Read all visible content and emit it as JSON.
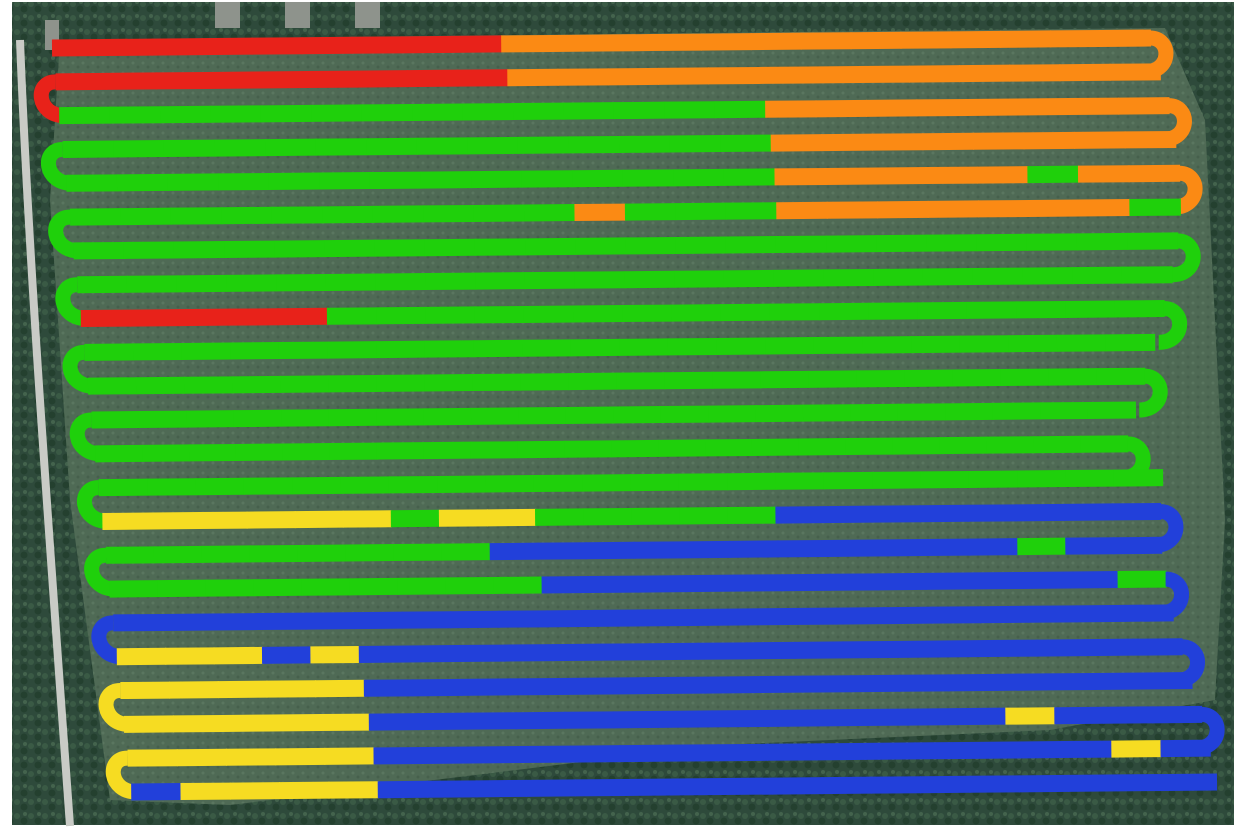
{
  "map": {
    "kind": "aerial-imagery-with-track-overlay",
    "text_labels": [],
    "colors": {
      "frame": "#ffffff",
      "forest": "#2e4a3b",
      "field": "#4f6a55",
      "road": "#c9cbc6",
      "track_red": "#e8221a",
      "track_orange": "#fb8a14",
      "track_green": "#1fd00b",
      "track_yellow": "#f6dc22",
      "track_blue": "#2240da"
    },
    "features": [
      "forest-background",
      "field-clearing",
      "road-left",
      "gps-track-passes"
    ],
    "track_pass_colors_top_to_bottom": [
      "red-orange",
      "red-orange",
      "green-orange",
      "green-orange",
      "green-orange",
      "green-orange",
      "green",
      "green",
      "green-red",
      "green",
      "green",
      "green",
      "green",
      "green",
      "yellow-green-blue",
      "green-blue",
      "green-blue",
      "blue",
      "blue-yellow",
      "blue-yellow",
      "blue-yellow",
      "blue-yellow",
      "blue-yellow"
    ]
  }
}
